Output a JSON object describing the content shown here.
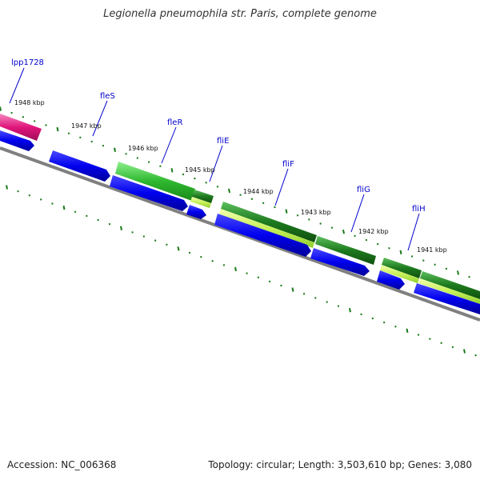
{
  "title": "Legionella pneumophila str. Paris, complete genome",
  "footer": {
    "accession": "Accession: NC_006368",
    "topology": "Topology: circular; Length: 3,503,610 bp; Genes: 3,080"
  },
  "colors": {
    "cds_forward": "#0000ee",
    "gene_green": "#2fb82f",
    "gene_dark_green": "#1e7a1e",
    "gene_magenta": "#e0157c",
    "backbone": "#808080",
    "tick": "#1a7a1a",
    "label_gene": "#0000cc",
    "label_kbp": "#111111"
  },
  "kbp_labels": [
    "1948 kbp",
    "1947 kbp",
    "1946 kbp",
    "1945 kbp",
    "1944 kbp",
    "1943 kbp",
    "1942 kbp",
    "1941 kbp"
  ],
  "genes": [
    {
      "name": "lpp1728",
      "color": "magenta"
    },
    {
      "name": "fleS",
      "color": "none"
    },
    {
      "name": "fleR",
      "color": "green"
    },
    {
      "name": "fliE",
      "color": "dark-green"
    },
    {
      "name": "fliF",
      "color": "dark-green"
    },
    {
      "name": "fliG",
      "color": "dark-green"
    },
    {
      "name": "fliH",
      "color": "dark-green"
    }
  ]
}
